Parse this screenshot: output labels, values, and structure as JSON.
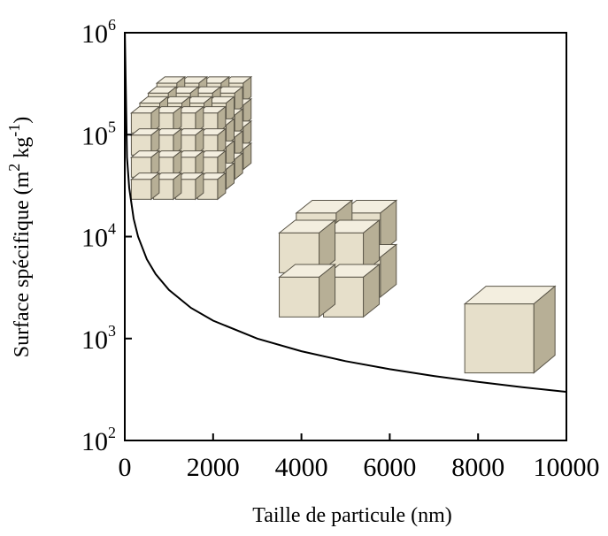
{
  "chart_data": {
    "type": "line",
    "xlabel": "Taille  de particule  (nm)",
    "ylabel_main": "Surface spécifique (m",
    "ylabel_sup1": "2",
    "ylabel_mid": " kg",
    "ylabel_sup2": "-1",
    "ylabel_end": ")",
    "xlim": [
      0,
      10000
    ],
    "ylim": [
      100,
      1000000
    ],
    "yscale": "log",
    "grid": false,
    "x_ticks": [
      {
        "value": 0,
        "label": "0"
      },
      {
        "value": 2000,
        "label": "2000"
      },
      {
        "value": 4000,
        "label": "4000"
      },
      {
        "value": 6000,
        "label": "6000"
      },
      {
        "value": 8000,
        "label": "8000"
      },
      {
        "value": 10000,
        "label": "10000"
      }
    ],
    "y_ticks": [
      {
        "value": 100,
        "base": "10",
        "exp": "2"
      },
      {
        "value": 1000,
        "base": "10",
        "exp": "3"
      },
      {
        "value": 10000,
        "base": "10",
        "exp": "4"
      },
      {
        "value": 100000,
        "base": "10",
        "exp": "5"
      },
      {
        "value": 1000000,
        "base": "10",
        "exp": "6"
      }
    ],
    "series": [
      {
        "values_formula": "y = 3000000 / x",
        "x": [
          3,
          50,
          100,
          200,
          300,
          500,
          700,
          1000,
          1500,
          2000,
          3000,
          4000,
          5000,
          6000,
          7000,
          8000,
          9000,
          10000
        ],
        "y": [
          1000000,
          60000,
          30000,
          15000,
          10000,
          6000,
          4286,
          3000,
          2000,
          1500,
          1000,
          750,
          600,
          500,
          429,
          375,
          333,
          300
        ]
      }
    ],
    "illustrations": [
      {
        "name": "many-small-cubes",
        "grid": 4,
        "x": 1150,
        "y": 60000
      },
      {
        "name": "eight-medium-cubes",
        "grid": 2,
        "x": 4500,
        "y": 4000
      },
      {
        "name": "single-large-cube",
        "grid": 1,
        "x": 8500,
        "y": 1200
      }
    ],
    "colors": {
      "curve": "#000000",
      "cube_front": "#e6dfca",
      "cube_top": "#f3eedf",
      "cube_side": "#b7af96",
      "cube_edge": "#5a5548"
    }
  }
}
